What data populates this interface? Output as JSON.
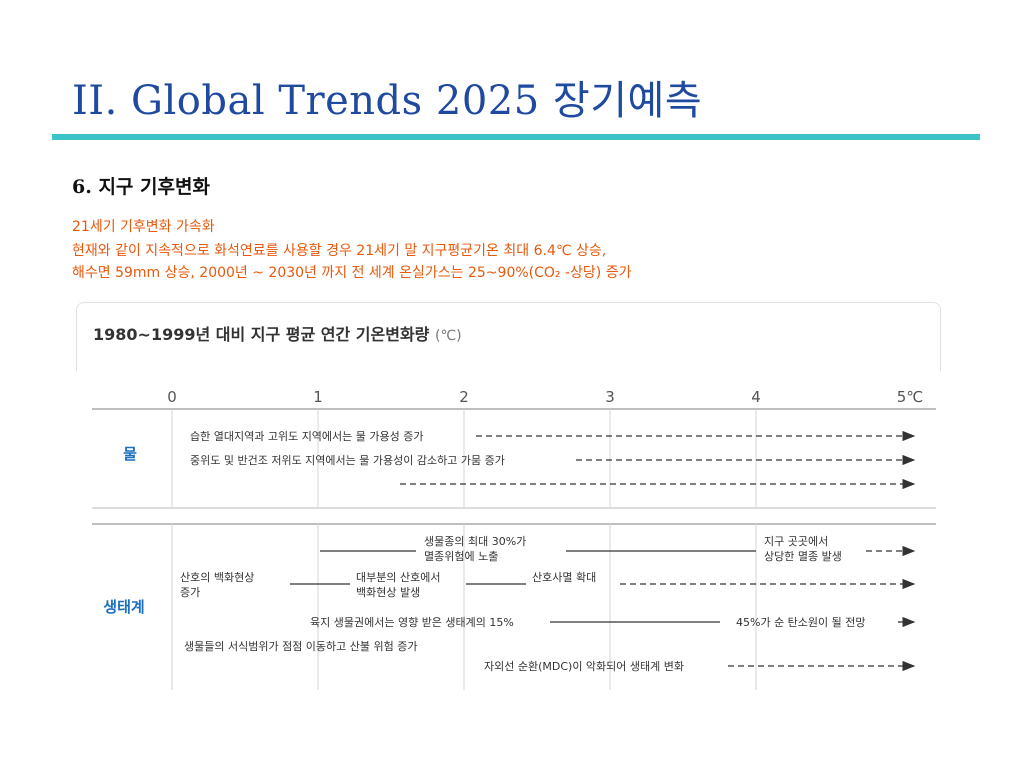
{
  "slide": {
    "title": "II. Global Trends 2025  장기예측",
    "section": "6. 지구 기후변화",
    "lines": [
      "21세기 기후변화 가속화",
      "현재와 같이 지속적으로 화석연료를 사용할 경우  21세기 말 지구평균기온 최대 6.4℃ 상승,",
      "해수면 59mm 상승, 2000년 ~ 2030년 까지 전 세계 온실가스는 25~90%(CO₂ -상당) 증가"
    ]
  },
  "figure": {
    "title": "1980~1999년 대비 지구 평균 연간 기온변화량",
    "unit": "(℃)",
    "axis_ticks": [
      "0",
      "1",
      "2",
      "3",
      "4",
      "5℃"
    ],
    "categories": {
      "water": "물",
      "ecosystem": "생태계"
    },
    "water": [
      {
        "text": "습한 열대지역과 고위도 지역에서는 물 가용성 증가"
      },
      {
        "text": "중위도 및 반건조 저위도 지역에서는 물 가용성이 감소하고 가뭄 증가"
      },
      {
        "text": ""
      }
    ],
    "eco": {
      "extinction_30": [
        "생물종의 최대 30%가",
        "멸종위험에 노출"
      ],
      "widespread_extinction": [
        "지구 곳곳에서",
        "상당한 멸종 발생"
      ],
      "coral_bleach": [
        "산호의 백화현상",
        "증가"
      ],
      "coral_most": [
        "대부분의 산호에서",
        "백화현상 발생"
      ],
      "coral_death": "산호사멸 확대",
      "land_15": "육지 생물권에서는 영향 받은 생태계의 15%",
      "carbon_45": "45%가 순 탄소원이 될 전망",
      "habitat": "생물들의 서식범위가 점점 이동하고 산불 위험 증가",
      "moc": "자외선 순환(MDC)이 악화되어 생태계 변화"
    }
  }
}
